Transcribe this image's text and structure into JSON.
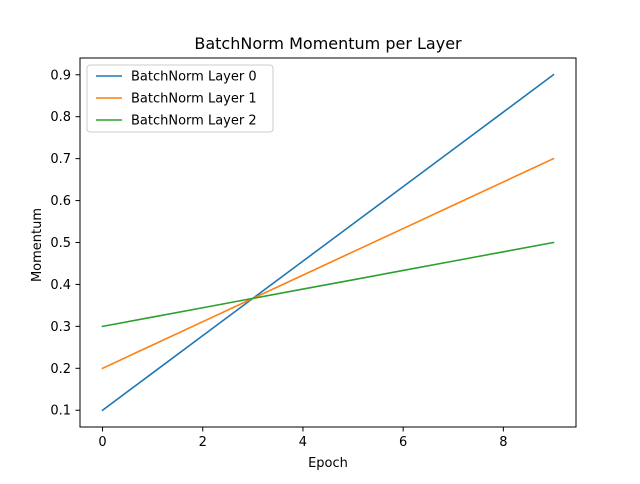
{
  "chart_data": {
    "type": "line",
    "title": "BatchNorm Momentum per Layer",
    "xlabel": "Epoch",
    "ylabel": "Momentum",
    "x": [
      0,
      1,
      2,
      3,
      4,
      5,
      6,
      7,
      8,
      9
    ],
    "series": [
      {
        "name": "BatchNorm Layer 0",
        "color": "#1f77b4",
        "values": [
          0.1,
          0.1889,
          0.2778,
          0.3667,
          0.4556,
          0.5444,
          0.6333,
          0.7222,
          0.8111,
          0.9
        ]
      },
      {
        "name": "BatchNorm Layer 1",
        "color": "#ff7f0e",
        "values": [
          0.2,
          0.2556,
          0.3111,
          0.3667,
          0.4222,
          0.4778,
          0.5333,
          0.5889,
          0.6444,
          0.7
        ]
      },
      {
        "name": "BatchNorm Layer 2",
        "color": "#2ca02c",
        "values": [
          0.3,
          0.3222,
          0.3444,
          0.3667,
          0.3889,
          0.4111,
          0.4333,
          0.4556,
          0.4778,
          0.5
        ]
      }
    ],
    "xlim": [
      -0.45,
      9.45
    ],
    "ylim": [
      0.06,
      0.94
    ],
    "xticks": [
      0,
      2,
      4,
      6,
      8
    ],
    "xtick_labels": [
      "0",
      "2",
      "4",
      "6",
      "8"
    ],
    "yticks": [
      0.1,
      0.2,
      0.3,
      0.4,
      0.5,
      0.6,
      0.7,
      0.8,
      0.9
    ],
    "ytick_labels": [
      "0.1",
      "0.2",
      "0.3",
      "0.4",
      "0.5",
      "0.6",
      "0.7",
      "0.8",
      "0.9"
    ],
    "grid": false,
    "legend_position": "top-left"
  }
}
